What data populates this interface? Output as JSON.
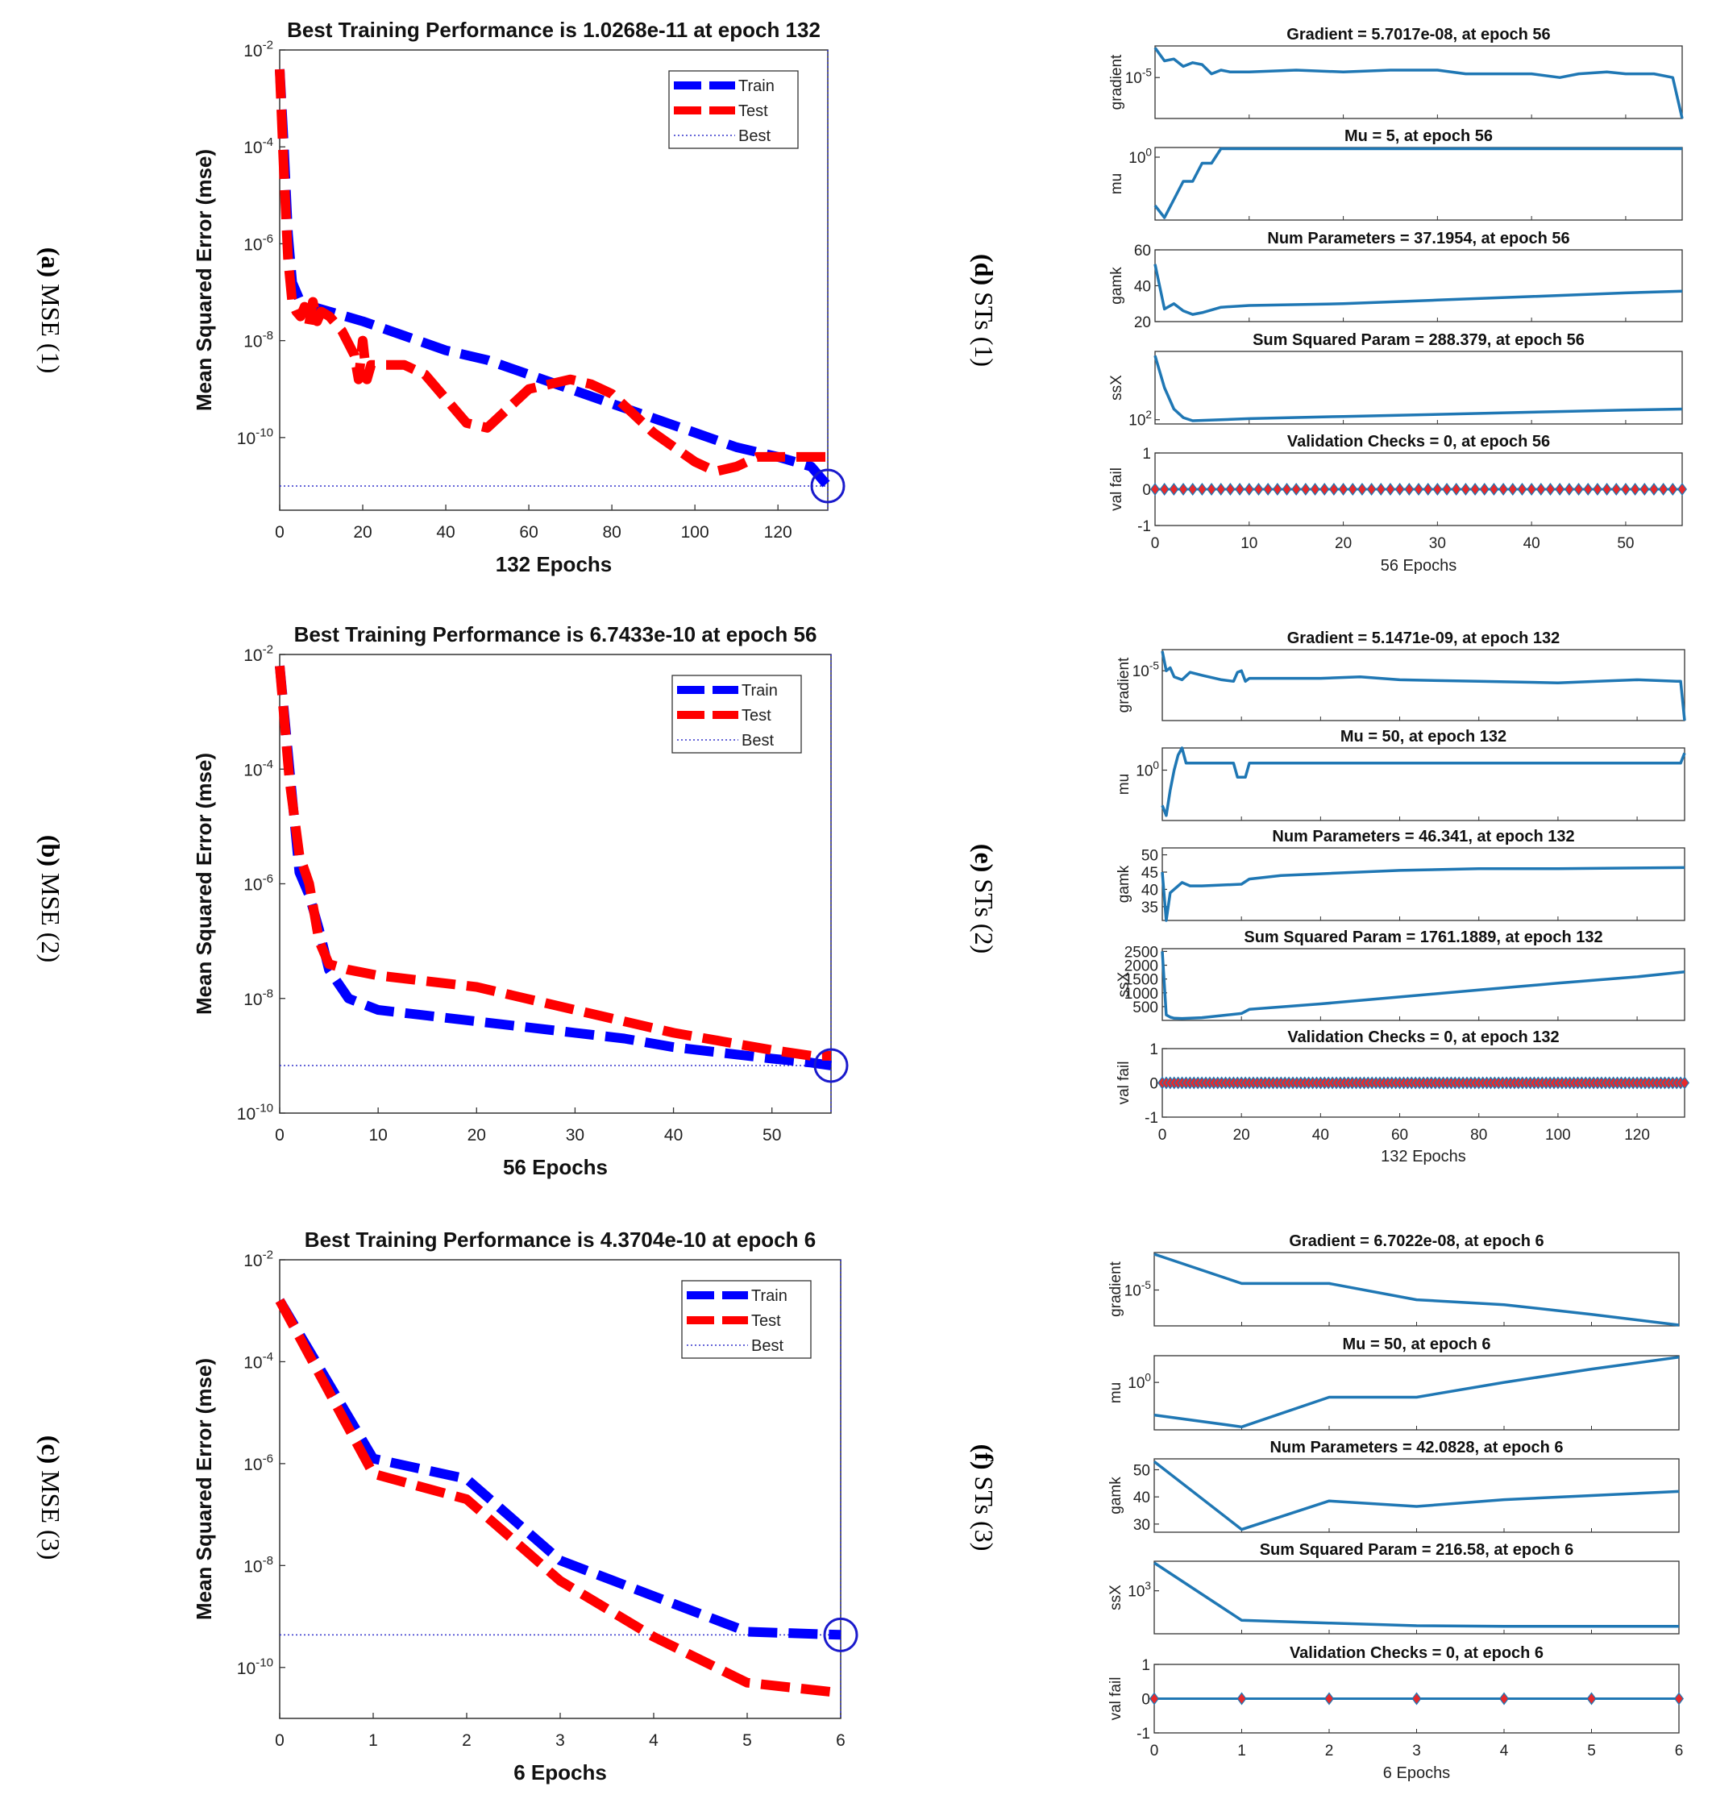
{
  "figure": {
    "panel_labels": [
      {
        "letter": "(a)",
        "text": "MSE (1)"
      },
      {
        "letter": "(b)",
        "text": "MSE (2)"
      },
      {
        "letter": "(c)",
        "text": "MSE (3)"
      },
      {
        "letter": "(d)",
        "text": "STs (1)"
      },
      {
        "letter": "(e)",
        "text": "STs (2)"
      },
      {
        "letter": "(f)",
        "text": "STs (3)"
      }
    ],
    "colors": {
      "train": "#0000ff",
      "test": "#ff0000",
      "best": "#3333cc",
      "circle": "#1a1acc",
      "matlab_blue": "#1f77b4",
      "marker_red": "#e8292b"
    }
  },
  "chart_data": [
    {
      "id": "a",
      "type": "line",
      "title": "Best Training Performance is 1.0268e-11 at epoch 132",
      "xlabel": "132 Epochs",
      "ylabel": "Mean Squared Error  (mse)",
      "xlim": [
        0,
        132
      ],
      "ylim_exp": [
        -11.5,
        -2
      ],
      "xticks": [
        0,
        20,
        40,
        60,
        80,
        100,
        120
      ],
      "yticks_exp": [
        -10,
        -8,
        -6,
        -4,
        -2
      ],
      "legend": [
        "Train",
        "Test",
        "Best"
      ],
      "legend_loc": "top-right",
      "best": {
        "epoch": 132,
        "value_exp": -11
      },
      "series": [
        {
          "name": "Train",
          "x": [
            0,
            1,
            2,
            3,
            5,
            8,
            12,
            20,
            30,
            40,
            50,
            60,
            70,
            80,
            90,
            100,
            110,
            120,
            128,
            132
          ],
          "y_exp": [
            -2.4,
            -4,
            -5.8,
            -6.8,
            -7.2,
            -7.3,
            -7.4,
            -7.6,
            -7.9,
            -8.2,
            -8.4,
            -8.7,
            -9.0,
            -9.3,
            -9.6,
            -9.9,
            -10.2,
            -10.4,
            -10.6,
            -11
          ]
        },
        {
          "name": "Test",
          "x": [
            0,
            1,
            2,
            3,
            4,
            5,
            6,
            7,
            8,
            9,
            10,
            12,
            15,
            18,
            19,
            20,
            21,
            22,
            25,
            30,
            35,
            40,
            45,
            50,
            55,
            60,
            65,
            70,
            75,
            80,
            85,
            90,
            95,
            100,
            105,
            110,
            115,
            120,
            125,
            129,
            132
          ],
          "y_exp": [
            -2.4,
            -4.5,
            -6.3,
            -7.2,
            -7.4,
            -7.5,
            -7.3,
            -7.7,
            -7.2,
            -7.6,
            -7.4,
            -7.5,
            -7.8,
            -8.3,
            -8.8,
            -8.0,
            -8.8,
            -8.5,
            -8.5,
            -8.5,
            -8.7,
            -9.2,
            -9.7,
            -9.8,
            -9.4,
            -9.0,
            -8.9,
            -8.8,
            -8.9,
            -9.1,
            -9.5,
            -9.9,
            -10.2,
            -10.5,
            -10.7,
            -10.6,
            -10.4,
            -10.4,
            -10.4,
            -10.4,
            -10.4
          ]
        }
      ]
    },
    {
      "id": "b",
      "type": "line",
      "title": "Best Training Performance is 6.7433e-10 at epoch 56",
      "xlabel": "56 Epochs",
      "ylabel": "Mean Squared Error  (mse)",
      "xlim": [
        0,
        56
      ],
      "ylim_exp": [
        -10,
        -2
      ],
      "xticks": [
        0,
        10,
        20,
        30,
        40,
        50
      ],
      "yticks_exp": [
        -10,
        -8,
        -6,
        -4,
        -2
      ],
      "legend": [
        "Train",
        "Test",
        "Best"
      ],
      "legend_loc": "top-right",
      "best": {
        "epoch": 56,
        "value_exp": -9.17
      },
      "series": [
        {
          "name": "Train",
          "x": [
            0,
            1,
            2,
            3,
            4,
            5,
            7,
            10,
            15,
            20,
            25,
            30,
            35,
            40,
            45,
            50,
            54,
            56
          ],
          "y_exp": [
            -2.2,
            -4,
            -5.8,
            -6.2,
            -6.8,
            -7.5,
            -8.0,
            -8.2,
            -8.3,
            -8.4,
            -8.5,
            -8.6,
            -8.7,
            -8.85,
            -8.95,
            -9.05,
            -9.12,
            -9.17
          ]
        },
        {
          "name": "Test",
          "x": [
            0,
            1,
            2,
            3,
            4,
            5,
            7,
            10,
            15,
            20,
            25,
            30,
            35,
            40,
            45,
            50,
            54,
            56
          ],
          "y_exp": [
            -2.2,
            -4.2,
            -5.5,
            -6.0,
            -7.0,
            -7.4,
            -7.5,
            -7.6,
            -7.7,
            -7.8,
            -8.0,
            -8.2,
            -8.4,
            -8.6,
            -8.75,
            -8.9,
            -9.0,
            -9.0
          ]
        }
      ]
    },
    {
      "id": "c",
      "type": "line",
      "title": "Best Training Performance is 4.3704e-10 at epoch 6",
      "xlabel": "6 Epochs",
      "ylabel": "Mean Squared Error  (mse)",
      "xlim": [
        0,
        6
      ],
      "ylim_exp": [
        -11,
        -2
      ],
      "xticks": [
        0,
        1,
        2,
        3,
        4,
        5,
        6
      ],
      "yticks_exp": [
        -10,
        -8,
        -6,
        -4,
        -2
      ],
      "legend": [
        "Train",
        "Test",
        "Best"
      ],
      "legend_loc": "top-right",
      "best": {
        "epoch": 6,
        "value_exp": -9.36
      },
      "series": [
        {
          "name": "Train",
          "x": [
            0,
            1,
            2,
            3,
            4,
            5,
            6
          ],
          "y_exp": [
            -2.8,
            -5.9,
            -6.3,
            -7.9,
            -8.6,
            -9.3,
            -9.36
          ]
        },
        {
          "name": "Test",
          "x": [
            0,
            1,
            2,
            3,
            4,
            5,
            6
          ],
          "y_exp": [
            -2.8,
            -6.2,
            -6.7,
            -8.3,
            -9.4,
            -10.3,
            -10.5
          ]
        }
      ]
    },
    {
      "id": "d",
      "type": "line",
      "epochs": 56,
      "xlabel": "56 Epochs",
      "xticks": [
        0,
        10,
        20,
        30,
        40,
        50
      ],
      "subplots": [
        {
          "title": "Gradient = 5.7017e-08, at epoch 56",
          "ylabel": "gradient",
          "log": true,
          "ylim": [
            -7.2,
            -3.3
          ],
          "ytick_labels": [
            {
              "v": -5,
              "base": "10",
              "exp": "-5"
            }
          ],
          "x": [
            0,
            1,
            2,
            3,
            4,
            5,
            6,
            7,
            8,
            10,
            15,
            20,
            25,
            30,
            33,
            35,
            40,
            43,
            45,
            48,
            50,
            53,
            55,
            56
          ],
          "y": [
            -3.4,
            -4.1,
            -4.0,
            -4.4,
            -4.2,
            -4.3,
            -4.8,
            -4.6,
            -4.7,
            -4.7,
            -4.6,
            -4.7,
            -4.6,
            -4.6,
            -4.8,
            -4.8,
            -4.8,
            -5.0,
            -4.8,
            -4.7,
            -4.8,
            -4.8,
            -5.0,
            -7.25
          ]
        },
        {
          "title": "Mu = 5, at epoch 56",
          "ylabel": "mu",
          "log": true,
          "ylim": [
            -5.2,
            0.8
          ],
          "ytick_labels": [
            {
              "v": 0,
              "base": "10",
              "exp": "0"
            }
          ],
          "x": [
            0,
            1,
            2,
            3,
            4,
            5,
            6,
            7,
            56
          ],
          "y": [
            -4,
            -5,
            -3.5,
            -2.0,
            -2.0,
            -0.5,
            -0.5,
            0.7,
            0.7
          ]
        },
        {
          "title": "Num Parameters = 37.1954, at epoch 56",
          "ylabel": "gamk",
          "log": false,
          "ylim": [
            20,
            60
          ],
          "yticks": [
            20,
            40,
            60
          ],
          "x": [
            0,
            1,
            2,
            3,
            4,
            5,
            7,
            10,
            20,
            30,
            40,
            50,
            56
          ],
          "y": [
            52,
            27,
            30,
            26,
            24,
            25,
            28,
            29,
            30,
            32,
            34,
            36,
            37
          ]
        },
        {
          "title": "Sum Squared Param = 288.379, at epoch 56",
          "ylabel": "ssX",
          "log": true,
          "ylim": [
            1.8,
            5.2
          ],
          "ytick_labels": [
            {
              "v": 2,
              "base": "10",
              "exp": "2"
            }
          ],
          "x": [
            0,
            1,
            2,
            3,
            4,
            10,
            20,
            30,
            40,
            50,
            56
          ],
          "y": [
            5.0,
            3.5,
            2.5,
            2.1,
            1.95,
            2.05,
            2.15,
            2.25,
            2.35,
            2.45,
            2.5
          ]
        },
        {
          "title": "Validation Checks = 0, at epoch 56",
          "ylabel": "val fail",
          "log": false,
          "ylim": [
            -1,
            1
          ],
          "yticks": [
            -1,
            0,
            1
          ],
          "markers": true,
          "x_max": 56
        }
      ]
    },
    {
      "id": "e",
      "type": "line",
      "epochs": 132,
      "xlabel": "132 Epochs",
      "xticks": [
        0,
        20,
        40,
        60,
        80,
        100,
        120
      ],
      "subplots": [
        {
          "title": "Gradient = 5.1471e-09, at epoch 132",
          "ylabel": "gradient",
          "log": true,
          "ylim": [
            -8.3,
            -3.6
          ],
          "ytick_labels": [
            {
              "v": -5,
              "base": "10",
              "exp": "-5"
            }
          ],
          "x": [
            0,
            1,
            2,
            3,
            5,
            7,
            10,
            15,
            18,
            19,
            20,
            21,
            22,
            30,
            40,
            50,
            60,
            80,
            100,
            110,
            120,
            130,
            131,
            132
          ],
          "y": [
            -3.7,
            -5.0,
            -4.8,
            -5.4,
            -5.6,
            -5.1,
            -5.3,
            -5.6,
            -5.7,
            -5.1,
            -5.0,
            -5.7,
            -5.5,
            -5.5,
            -5.5,
            -5.4,
            -5.6,
            -5.7,
            -5.8,
            -5.7,
            -5.6,
            -5.7,
            -5.7,
            -8.3
          ]
        },
        {
          "title": "Mu = 50, at epoch 132",
          "ylabel": "mu",
          "log": true,
          "ylim": [
            -5,
            2.2
          ],
          "ytick_labels": [
            {
              "v": 0,
              "base": "10",
              "exp": "0"
            }
          ],
          "x": [
            0,
            1,
            2,
            3,
            4,
            5,
            6,
            18,
            19,
            20,
            21,
            22,
            130,
            131,
            132
          ],
          "y": [
            -3.5,
            -4.5,
            -2.0,
            0,
            1.5,
            2.2,
            0.7,
            0.7,
            -0.7,
            -0.7,
            -0.7,
            0.7,
            0.7,
            0.7,
            1.7
          ]
        },
        {
          "title": "Num Parameters = 46.341, at epoch 132",
          "ylabel": "gamk",
          "log": false,
          "ylim": [
            31,
            52
          ],
          "yticks": [
            35,
            40,
            45,
            50
          ],
          "x": [
            0,
            1,
            2,
            3,
            5,
            7,
            10,
            20,
            22,
            30,
            40,
            60,
            80,
            100,
            120,
            132
          ],
          "y": [
            45,
            31,
            39,
            40,
            42,
            41,
            41,
            41.5,
            43,
            44,
            44.5,
            45.5,
            46,
            46,
            46.2,
            46.3
          ]
        },
        {
          "title": "Sum Squared Param = 1761.1889, at epoch 132",
          "ylabel": "ssX",
          "log": false,
          "ylim": [
            0,
            2600
          ],
          "yticks": [
            500,
            1000,
            1500,
            2000,
            2500
          ],
          "x": [
            0,
            1,
            2,
            3,
            5,
            10,
            20,
            22,
            40,
            60,
            80,
            100,
            120,
            132
          ],
          "y": [
            2500,
            200,
            120,
            80,
            70,
            100,
            250,
            400,
            600,
            850,
            1100,
            1350,
            1580,
            1761
          ]
        },
        {
          "title": "Validation Checks = 0, at epoch 132",
          "ylabel": "val fail",
          "log": false,
          "ylim": [
            -1,
            1
          ],
          "yticks": [
            -1,
            0,
            1
          ],
          "markers": true,
          "x_max": 132
        }
      ]
    },
    {
      "id": "f",
      "type": "line",
      "epochs": 6,
      "xlabel": "6 Epochs",
      "xticks": [
        0,
        1,
        2,
        3,
        4,
        5,
        6
      ],
      "subplots": [
        {
          "title": "Gradient = 6.7022e-08, at epoch 6",
          "ylabel": "gradient",
          "log": true,
          "ylim": [
            -7.2,
            -2.7
          ],
          "ytick_labels": [
            {
              "v": -5,
              "base": "10",
              "exp": "-5"
            }
          ],
          "x": [
            0,
            1,
            2,
            3,
            4,
            5,
            6
          ],
          "y": [
            -2.8,
            -4.6,
            -4.6,
            -5.6,
            -5.9,
            -6.5,
            -7.15
          ]
        },
        {
          "title": "Mu = 50, at epoch 6",
          "ylabel": "mu",
          "log": true,
          "ylim": [
            -3.2,
            1.8
          ],
          "ytick_labels": [
            {
              "v": 0,
              "base": "10",
              "exp": "0"
            }
          ],
          "x": [
            0,
            1,
            2,
            3,
            4,
            5,
            6
          ],
          "y": [
            -2.2,
            -3.0,
            -1.0,
            -1.0,
            0.0,
            0.9,
            1.7
          ]
        },
        {
          "title": "Num Parameters = 42.0828, at epoch 6",
          "ylabel": "gamk",
          "log": false,
          "ylim": [
            27,
            54
          ],
          "yticks": [
            30,
            40,
            50
          ],
          "x": [
            0,
            1,
            2,
            3,
            4,
            5,
            6
          ],
          "y": [
            53,
            28,
            38.5,
            36.5,
            39,
            40.5,
            42
          ]
        },
        {
          "title": "Sum Squared Param = 216.58, at epoch 6",
          "ylabel": "ssX",
          "log": true,
          "ylim": [
            2.2,
            3.55
          ],
          "ytick_labels": [
            {
              "v": 3,
              "base": "10",
              "exp": "3"
            }
          ],
          "x": [
            0,
            1,
            2,
            3,
            4,
            5,
            6
          ],
          "y": [
            3.52,
            2.45,
            2.4,
            2.35,
            2.34,
            2.34,
            2.34
          ]
        },
        {
          "title": "Validation Checks = 0, at epoch 6",
          "ylabel": "val fail",
          "log": false,
          "ylim": [
            -1,
            1
          ],
          "yticks": [
            -1,
            0,
            1
          ],
          "markers": true,
          "x_max": 6
        }
      ]
    }
  ]
}
